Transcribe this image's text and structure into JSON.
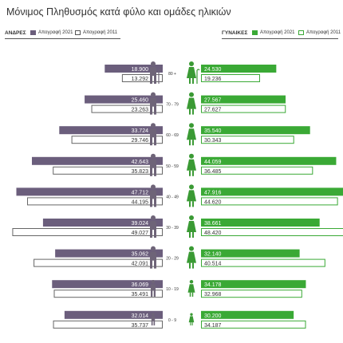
{
  "chart_data": {
    "type": "bar",
    "title": "Μόνιμος Πληθυσμός κατά φύλο και ομάδες ηλικιών",
    "left_label": "ΑΝΔΡΕΣ",
    "right_label": "ΓΥΝΑΙΚΕΣ",
    "legend": {
      "census_2021": "Απογραφή 2021",
      "census_2011": "Απογραφή 2011"
    },
    "categories": [
      "80 +",
      "70 - 79",
      "60 - 69",
      "50 - 59",
      "40 - 49",
      "30 - 39",
      "20 - 29",
      "10 - 19",
      "0 - 9"
    ],
    "men_2021": [
      18900,
      25460,
      33724,
      42643,
      47712,
      39024,
      35062,
      36069,
      32014
    ],
    "men_2011": [
      13292,
      23263,
      29746,
      35823,
      44195,
      49027,
      42091,
      35491,
      35737
    ],
    "women_2021": [
      24530,
      27567,
      35540,
      44059,
      47916,
      38661,
      32140,
      34178,
      30200
    ],
    "women_2011": [
      19236,
      27627,
      30343,
      36485,
      44620,
      48420,
      40514,
      32968,
      34187
    ],
    "men_2021_labels": [
      "18.900",
      "25.460",
      "33.724",
      "42.643",
      "47.712",
      "39.024",
      "35.062",
      "36.069",
      "32.014"
    ],
    "men_2011_labels": [
      "13.292",
      "23.263",
      "29.746",
      "35.823",
      "44.195",
      "49.027",
      "42.091",
      "35.491",
      "35.737"
    ],
    "women_2021_labels": [
      "24.530",
      "27.567",
      "35.540",
      "44.059",
      "47.916",
      "38.661",
      "32.140",
      "34.178",
      "30.200"
    ],
    "women_2011_labels": [
      "19.236",
      "27.627",
      "30.343",
      "36.485",
      "44.620",
      "48.420",
      "40.514",
      "32.968",
      "34.187"
    ],
    "xlim": [
      0,
      52000
    ],
    "colors": {
      "men": "#6b5e7c",
      "women": "#3aa935",
      "men_icon": "#6e6478",
      "women_icon": "#3a9a34",
      "outline_2011": "#666666",
      "text": "#333333"
    }
  }
}
